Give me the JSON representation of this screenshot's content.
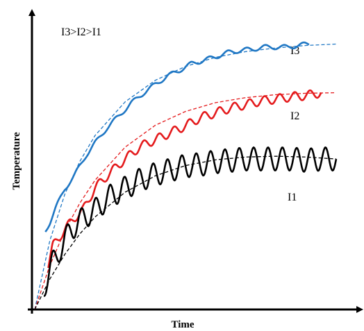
{
  "chart_data": {
    "type": "line",
    "title": "",
    "xlabel": "Time",
    "ylabel": "Temperature",
    "annotation": "I3>I2>I1",
    "x_range": [
      0,
      10
    ],
    "y_range": [
      0,
      10
    ],
    "axis_ticks": false,
    "grid": false,
    "legend": "inline labels at curve ends",
    "series": [
      {
        "name": "I3",
        "color": "#1f77c4",
        "trend_style": "dashed",
        "measured_style": "solid",
        "trend": [
          [
            0,
            0
          ],
          [
            0.5,
            2.49
          ],
          [
            1,
            4.18
          ],
          [
            1.5,
            5.37
          ],
          [
            2,
            6.3
          ],
          [
            3,
            7.52
          ],
          [
            4,
            8.3
          ],
          [
            5,
            8.8
          ],
          [
            6,
            9.13
          ],
          [
            7,
            9.34
          ],
          [
            8,
            9.47
          ],
          [
            9,
            9.56
          ],
          [
            10,
            9.61
          ]
        ],
        "measured": [
          [
            0.35,
            2.84
          ],
          [
            0.5,
            3.15
          ],
          [
            0.7,
            3.68
          ],
          [
            1,
            4.38
          ],
          [
            1.3,
            4.82
          ],
          [
            1.7,
            5.58
          ],
          [
            2,
            6.02
          ],
          [
            2.4,
            6.58
          ],
          [
            2.8,
            7.02
          ],
          [
            3.2,
            7.47
          ],
          [
            3.6,
            7.83
          ],
          [
            4,
            8.15
          ],
          [
            4.4,
            8.45
          ],
          [
            4.8,
            8.66
          ],
          [
            5.2,
            8.9
          ],
          [
            5.6,
            9.02
          ],
          [
            6,
            9.15
          ],
          [
            6.4,
            9.3
          ],
          [
            6.8,
            9.38
          ],
          [
            7.2,
            9.42
          ],
          [
            7.6,
            9.5
          ],
          [
            8,
            9.5
          ],
          [
            8.4,
            9.5
          ],
          [
            8.8,
            9.57
          ],
          [
            9.1,
            9.62
          ]
        ]
      },
      {
        "name": "I2",
        "color": "#e41a1c",
        "trend_style": "dashed",
        "measured_style": "solid",
        "trend": [
          [
            0,
            0
          ],
          [
            0.5,
            1.59
          ],
          [
            1,
            2.86
          ],
          [
            1.5,
            3.86
          ],
          [
            2,
            4.68
          ],
          [
            3,
            5.88
          ],
          [
            4,
            6.67
          ],
          [
            5,
            7.17
          ],
          [
            6,
            7.49
          ],
          [
            7,
            7.67
          ],
          [
            8,
            7.78
          ],
          [
            9,
            7.83
          ],
          [
            10,
            7.85
          ]
        ],
        "measured": [
          [
            0.45,
            1.6
          ],
          [
            0.6,
            2.3
          ],
          [
            0.8,
            2.6
          ],
          [
            1,
            2.9
          ],
          [
            1.3,
            3.3
          ],
          [
            1.6,
            3.6
          ],
          [
            2,
            4.4
          ],
          [
            2.5,
            4.95
          ],
          [
            3,
            5.45
          ],
          [
            3.5,
            5.9
          ],
          [
            4,
            6.15
          ],
          [
            4.5,
            6.4
          ],
          [
            5,
            6.65
          ],
          [
            5.5,
            6.95
          ],
          [
            6,
            7.12
          ],
          [
            6.5,
            7.3
          ],
          [
            7,
            7.42
          ],
          [
            7.5,
            7.55
          ],
          [
            8,
            7.62
          ],
          [
            8.5,
            7.7
          ],
          [
            9,
            7.75
          ],
          [
            9.5,
            7.85
          ]
        ]
      },
      {
        "name": "I1",
        "color": "#000000",
        "trend_style": "dashed",
        "measured_style": "solid",
        "trend": [
          [
            0,
            0
          ],
          [
            0.5,
            1.1
          ],
          [
            1,
            2.0
          ],
          [
            1.5,
            2.74
          ],
          [
            2,
            3.35
          ],
          [
            3,
            4.25
          ],
          [
            4,
            4.84
          ],
          [
            5,
            5.21
          ],
          [
            6,
            5.42
          ],
          [
            7,
            5.52
          ],
          [
            8,
            5.55
          ],
          [
            9,
            5.52
          ],
          [
            10,
            5.45
          ]
        ],
        "measured": [
          [
            0.3,
            0.8
          ],
          [
            0.6,
            1.7
          ],
          [
            0.9,
            2.3
          ],
          [
            1.2,
            2.9
          ],
          [
            1.6,
            3.3
          ],
          [
            2,
            3.6
          ],
          [
            2.5,
            4.1
          ],
          [
            3,
            4.4
          ],
          [
            3.5,
            4.7
          ],
          [
            4,
            4.9
          ],
          [
            4.5,
            5.05
          ],
          [
            5,
            5.2
          ],
          [
            5.5,
            5.25
          ],
          [
            6,
            5.35
          ],
          [
            6.5,
            5.4
          ],
          [
            7,
            5.45
          ],
          [
            7.5,
            5.45
          ],
          [
            8,
            5.45
          ],
          [
            8.5,
            5.45
          ],
          [
            9,
            5.4
          ],
          [
            9.5,
            5.45
          ],
          [
            10,
            5.45
          ]
        ]
      }
    ]
  }
}
